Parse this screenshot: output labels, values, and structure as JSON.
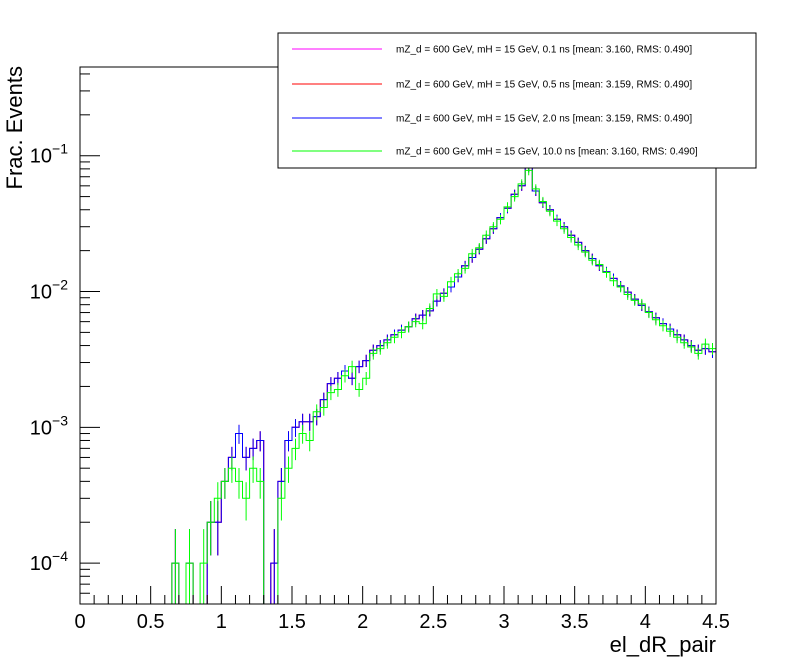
{
  "chart_data": {
    "type": "line",
    "title": "",
    "xlabel": "el_dR_pair",
    "ylabel": "Frac. Events",
    "xlim": [
      0,
      4.5
    ],
    "ylim": [
      5e-05,
      0.45
    ],
    "yscale": "log",
    "grid": false,
    "legend_position": "top-right",
    "xticks": [
      0,
      0.5,
      1,
      1.5,
      2,
      2.5,
      3,
      3.5,
      4,
      4.5
    ],
    "xtick_labels": [
      "0",
      "0.5",
      "1",
      "1.5",
      "2",
      "2.5",
      "3",
      "3.5",
      "4",
      "4.5"
    ],
    "ytick_labels": [
      {
        "value": 0.0001,
        "base": "10",
        "exp": "−4"
      },
      {
        "value": 0.001,
        "base": "10",
        "exp": "−3"
      },
      {
        "value": 0.01,
        "base": "10",
        "exp": "−2"
      },
      {
        "value": 0.1,
        "base": "10",
        "exp": "−1"
      }
    ],
    "bin_width": 0.05,
    "x": [
      0.675,
      0.725,
      0.775,
      0.825,
      0.875,
      0.925,
      0.975,
      1.025,
      1.075,
      1.125,
      1.175,
      1.225,
      1.275,
      1.325,
      1.375,
      1.425,
      1.475,
      1.525,
      1.575,
      1.625,
      1.675,
      1.725,
      1.775,
      1.825,
      1.875,
      1.925,
      1.975,
      2.025,
      2.075,
      2.125,
      2.175,
      2.225,
      2.275,
      2.325,
      2.375,
      2.425,
      2.475,
      2.525,
      2.575,
      2.625,
      2.675,
      2.725,
      2.775,
      2.825,
      2.875,
      2.925,
      2.975,
      3.025,
      3.075,
      3.125,
      3.175,
      3.225,
      3.275,
      3.325,
      3.375,
      3.425,
      3.475,
      3.525,
      3.575,
      3.625,
      3.675,
      3.725,
      3.775,
      3.825,
      3.875,
      3.925,
      3.975,
      4.025,
      4.075,
      4.125,
      4.175,
      4.225,
      4.275,
      4.325,
      4.375,
      4.425,
      4.475
    ],
    "series": [
      {
        "name": "mZ_d = 600 GeV, mH = 15 GeV, 0.1 ns [mean: 3.160, RMS: 0.490]",
        "color": "#ff00ff",
        "values": [
          0.0001,
          5e-05,
          0.0001,
          5e-05,
          5e-05,
          0.0002,
          0.0002,
          0.0004,
          0.0006,
          0.0009,
          0.0006,
          0.0007,
          0.0008,
          5e-05,
          0.0001,
          0.0004,
          0.0008,
          0.001,
          0.0011,
          0.0011,
          0.0012,
          0.0016,
          0.0021,
          0.0023,
          0.0026,
          0.0023,
          0.0028,
          0.0031,
          0.0037,
          0.004,
          0.0044,
          0.0048,
          0.0052,
          0.0055,
          0.0063,
          0.0067,
          0.0072,
          0.0085,
          0.0097,
          0.0108,
          0.0128,
          0.0155,
          0.0178,
          0.0205,
          0.0245,
          0.029,
          0.035,
          0.041,
          0.052,
          0.06,
          0.082,
          0.055,
          0.045,
          0.04,
          0.034,
          0.03,
          0.026,
          0.023,
          0.02,
          0.0175,
          0.0155,
          0.014,
          0.0125,
          0.011,
          0.0099,
          0.0088,
          0.0079,
          0.0071,
          0.0064,
          0.0058,
          0.0053,
          0.0048,
          0.0044,
          0.004,
          0.0037,
          0.0038,
          0.0036
        ]
      },
      {
        "name": "mZ_d = 600 GeV, mH = 15 GeV, 0.5 ns [mean: 3.159, RMS: 0.490]",
        "color": "#ff0000",
        "values": [
          0.0001,
          5e-05,
          0.0001,
          5e-05,
          5e-05,
          0.0002,
          0.0002,
          0.0004,
          0.0006,
          0.0009,
          0.0006,
          0.0007,
          0.0008,
          5e-05,
          0.0001,
          0.0004,
          0.0008,
          0.001,
          0.0011,
          0.0011,
          0.0012,
          0.0016,
          0.0021,
          0.0023,
          0.0026,
          0.0023,
          0.0028,
          0.0031,
          0.0037,
          0.004,
          0.0044,
          0.0048,
          0.0052,
          0.0055,
          0.0063,
          0.0067,
          0.0072,
          0.0085,
          0.0097,
          0.0108,
          0.0128,
          0.0155,
          0.0178,
          0.0205,
          0.0245,
          0.029,
          0.035,
          0.041,
          0.052,
          0.06,
          0.082,
          0.055,
          0.045,
          0.04,
          0.034,
          0.03,
          0.026,
          0.023,
          0.02,
          0.0175,
          0.0155,
          0.014,
          0.0125,
          0.011,
          0.0099,
          0.0088,
          0.0079,
          0.0071,
          0.0064,
          0.0058,
          0.0053,
          0.0048,
          0.0044,
          0.004,
          0.0037,
          0.0038,
          0.0036
        ]
      },
      {
        "name": "mZ_d = 600 GeV, mH = 15 GeV, 2.0 ns [mean: 3.159, RMS: 0.490]",
        "color": "#0000ff",
        "values": [
          0.0001,
          5e-05,
          0.0001,
          5e-05,
          5e-05,
          0.0002,
          0.0002,
          0.0004,
          0.0006,
          0.0009,
          0.0006,
          0.0007,
          0.0008,
          5e-05,
          0.0001,
          0.0004,
          0.0008,
          0.001,
          0.0011,
          0.0011,
          0.0012,
          0.0016,
          0.0021,
          0.0023,
          0.0026,
          0.0023,
          0.0028,
          0.0031,
          0.0037,
          0.004,
          0.0044,
          0.0048,
          0.0052,
          0.0055,
          0.0063,
          0.0067,
          0.0072,
          0.0085,
          0.0097,
          0.0108,
          0.0128,
          0.0155,
          0.0178,
          0.0205,
          0.0245,
          0.029,
          0.035,
          0.041,
          0.052,
          0.06,
          0.082,
          0.055,
          0.045,
          0.04,
          0.034,
          0.03,
          0.026,
          0.023,
          0.02,
          0.0175,
          0.0155,
          0.014,
          0.0125,
          0.011,
          0.0099,
          0.0088,
          0.0079,
          0.0071,
          0.0064,
          0.0058,
          0.0053,
          0.0048,
          0.0044,
          0.004,
          0.0037,
          0.0038,
          0.0036
        ]
      },
      {
        "name": "mZ_d = 600 GeV, mH = 15 GeV, 10.0 ns [mean: 3.160, RMS: 0.490]",
        "color": "#00ff00",
        "values": [
          0.0001,
          5e-05,
          0.0001,
          5e-05,
          0.0001,
          0.0002,
          0.0003,
          0.0004,
          0.0005,
          0.0004,
          0.0003,
          0.0005,
          0.0004,
          5e-05,
          5e-05,
          0.0003,
          0.0005,
          0.0007,
          0.0009,
          0.0008,
          0.0013,
          0.0014,
          0.0018,
          0.0019,
          0.0024,
          0.0028,
          0.0019,
          0.0023,
          0.0035,
          0.0038,
          0.0042,
          0.0046,
          0.005,
          0.0055,
          0.006,
          0.0058,
          0.0075,
          0.0096,
          0.0092,
          0.0118,
          0.0135,
          0.0148,
          0.019,
          0.021,
          0.026,
          0.03,
          0.034,
          0.042,
          0.05,
          0.062,
          0.078,
          0.057,
          0.046,
          0.039,
          0.033,
          0.029,
          0.025,
          0.022,
          0.0195,
          0.017,
          0.0158,
          0.0138,
          0.012,
          0.0108,
          0.0095,
          0.0086,
          0.0081,
          0.007,
          0.0062,
          0.0056,
          0.0051,
          0.0046,
          0.0042,
          0.0039,
          0.0035,
          0.0041,
          0.0038
        ]
      }
    ]
  }
}
